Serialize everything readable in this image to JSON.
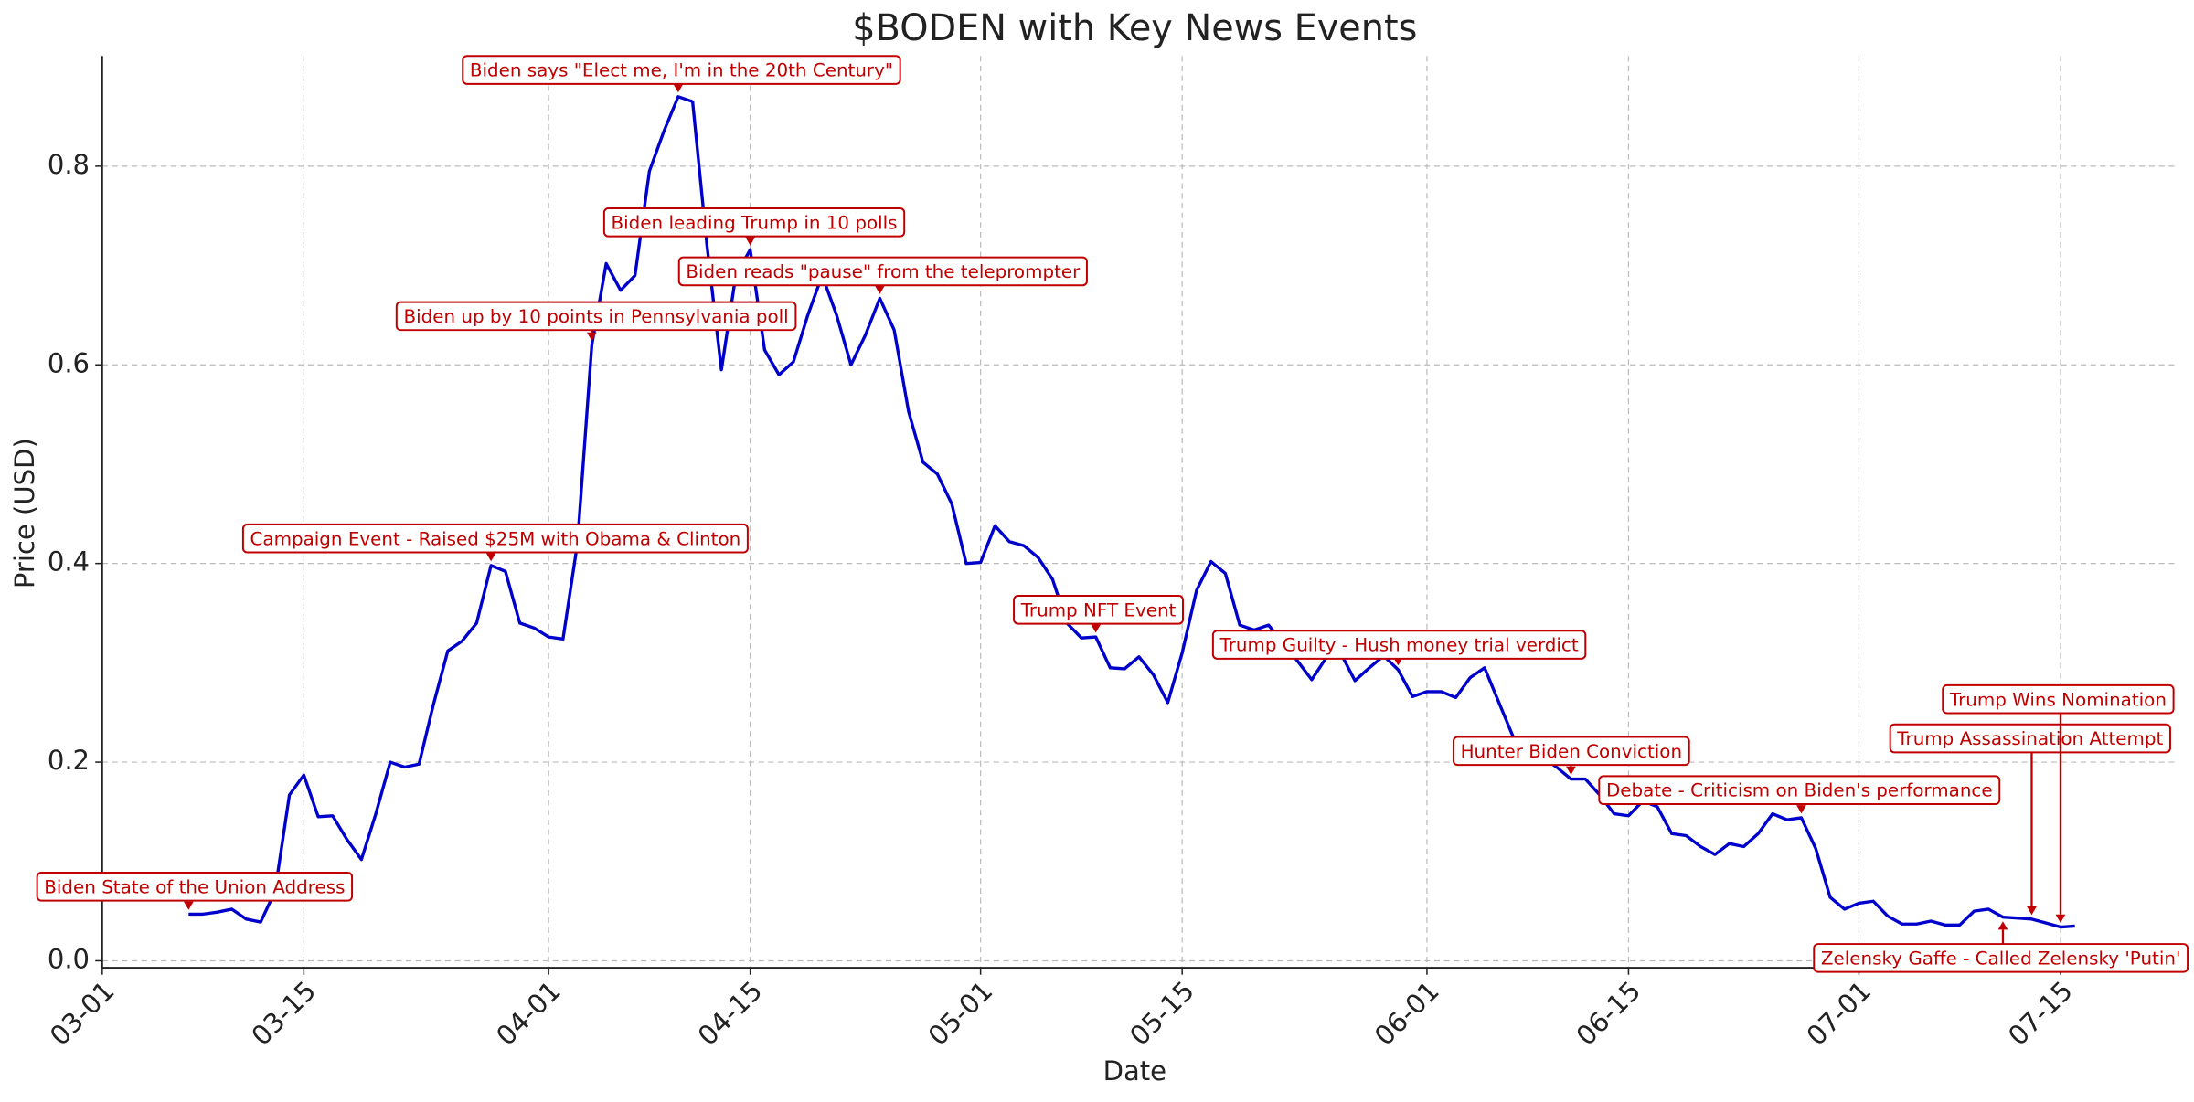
{
  "chart_data": {
    "type": "line",
    "title": "$BODEN with Key News Events",
    "xlabel": "Date",
    "ylabel": "Price (USD)",
    "color": "#0000cc",
    "annotation_color": "#c00000",
    "grid": true,
    "xlim": [
      "03-01",
      "07-23"
    ],
    "xticks": [
      "03-01",
      "03-15",
      "04-01",
      "04-15",
      "05-01",
      "05-15",
      "06-01",
      "06-15",
      "07-01",
      "07-15"
    ],
    "ylim": [
      -0.007,
      0.911
    ],
    "yticks": [
      {
        "value": 0,
        "label": "0.0"
      },
      0.2,
      0.4,
      0.6,
      0.8
    ],
    "x": [
      "03-07",
      "03-08",
      "03-09",
      "03-10",
      "03-11",
      "03-12",
      "03-13",
      "03-14",
      "03-15",
      "03-16",
      "03-17",
      "03-18",
      "03-19",
      "03-20",
      "03-21",
      "03-22",
      "03-23",
      "03-24",
      "03-25",
      "03-26",
      "03-27",
      "03-28",
      "03-29",
      "03-30",
      "03-31",
      "04-01",
      "04-02",
      "04-03",
      "04-04",
      "04-05",
      "04-06",
      "04-07",
      "04-08",
      "04-09",
      "04-10",
      "04-11",
      "04-12",
      "04-13",
      "04-14",
      "04-15",
      "04-16",
      "04-17",
      "04-18",
      "04-19",
      "04-20",
      "04-21",
      "04-22",
      "04-23",
      "04-24",
      "04-25",
      "04-26",
      "04-27",
      "04-28",
      "04-29",
      "04-30",
      "05-01",
      "05-02",
      "05-03",
      "05-04",
      "05-05",
      "05-06",
      "05-07",
      "05-08",
      "05-09",
      "05-10",
      "05-11",
      "05-12",
      "05-13",
      "05-14",
      "05-15",
      "05-16",
      "05-17",
      "05-18",
      "05-19",
      "05-20",
      "05-21",
      "05-22",
      "05-23",
      "05-24",
      "05-25",
      "05-26",
      "05-27",
      "05-28",
      "05-29",
      "05-30",
      "05-31",
      "06-01",
      "06-02",
      "06-03",
      "06-04",
      "06-05",
      "06-06",
      "06-07",
      "06-08",
      "06-09",
      "06-10",
      "06-11",
      "06-12",
      "06-13",
      "06-14",
      "06-15",
      "06-16",
      "06-17",
      "06-18",
      "06-19",
      "06-20",
      "06-21",
      "06-22",
      "06-23",
      "06-24",
      "06-25",
      "06-26",
      "06-27",
      "06-28",
      "06-29",
      "06-30",
      "07-01",
      "07-02",
      "07-03",
      "07-04",
      "07-05",
      "07-06",
      "07-07",
      "07-08",
      "07-09",
      "07-10",
      "07-11",
      "07-12",
      "07-13",
      "07-14",
      "07-15",
      "07-16"
    ],
    "values": [
      0.047,
      0.047,
      0.049,
      0.052,
      0.042,
      0.039,
      0.07,
      0.167,
      0.187,
      0.145,
      0.146,
      0.122,
      0.102,
      0.148,
      0.2,
      0.195,
      0.198,
      0.258,
      0.312,
      0.322,
      0.34,
      0.398,
      0.392,
      0.34,
      0.335,
      0.326,
      0.324,
      0.42,
      0.62,
      0.702,
      0.675,
      0.69,
      0.795,
      0.835,
      0.87,
      0.865,
      0.72,
      0.595,
      0.69,
      0.716,
      0.615,
      0.59,
      0.603,
      0.65,
      0.69,
      0.65,
      0.6,
      0.63,
      0.667,
      0.635,
      0.553,
      0.502,
      0.49,
      0.46,
      0.4,
      0.401,
      0.438,
      0.422,
      0.418,
      0.406,
      0.384,
      0.34,
      0.325,
      0.326,
      0.295,
      0.294,
      0.306,
      0.288,
      0.26,
      0.31,
      0.373,
      0.402,
      0.39,
      0.338,
      0.333,
      0.338,
      0.32,
      0.302,
      0.283,
      0.305,
      0.31,
      0.282,
      0.295,
      0.307,
      0.293,
      0.266,
      0.271,
      0.271,
      0.265,
      0.285,
      0.295,
      0.26,
      0.225,
      0.21,
      0.205,
      0.195,
      0.183,
      0.183,
      0.167,
      0.148,
      0.146,
      0.161,
      0.155,
      0.128,
      0.126,
      0.115,
      0.107,
      0.118,
      0.115,
      0.128,
      0.148,
      0.142,
      0.144,
      0.113,
      0.064,
      0.052,
      0.058,
      0.06,
      0.045,
      0.037,
      0.037,
      0.04,
      0.036,
      0.036,
      0.05,
      0.052,
      0.044,
      0.043,
      0.042,
      0.038,
      0.034,
      0.035
    ],
    "annotations": [
      {
        "text": "Biden State of the Union Address",
        "x": "03-07",
        "y": 0.047
      },
      {
        "text": "Campaign Event - Raised $25M with Obama & Clinton",
        "x": "03-28",
        "y": 0.398
      },
      {
        "text": "Biden up by 10 points in Pennsylvania poll",
        "x": "04-04",
        "y": 0.62
      },
      {
        "text": "Biden says \"Elect me, I'm in the 20th Century\"",
        "x": "04-10",
        "y": 0.87
      },
      {
        "text": "Biden leading Trump in 10 polls",
        "x": "04-15",
        "y": 0.716
      },
      {
        "text": "Biden reads \"pause\" from the teleprompter",
        "x": "04-24",
        "y": 0.667
      },
      {
        "text": "Trump NFT Event",
        "x": "05-09",
        "y": 0.326
      },
      {
        "text": "Trump Guilty - Hush money trial verdict",
        "x": "05-30",
        "y": 0.293
      },
      {
        "text": "Hunter Biden Conviction",
        "x": "06-11",
        "y": 0.183
      },
      {
        "text": "Debate - Criticism on Biden's performance",
        "x": "06-27",
        "y": 0.144
      },
      {
        "text": "Zelensky Gaffe - Called Zelensky 'Putin'",
        "x": "07-11",
        "y": 0.044
      },
      {
        "text": "Trump Assassination Attempt",
        "x": "07-13",
        "y": 0.042
      },
      {
        "text": "Trump Wins Nomination",
        "x": "07-15",
        "y": 0.034
      }
    ]
  }
}
